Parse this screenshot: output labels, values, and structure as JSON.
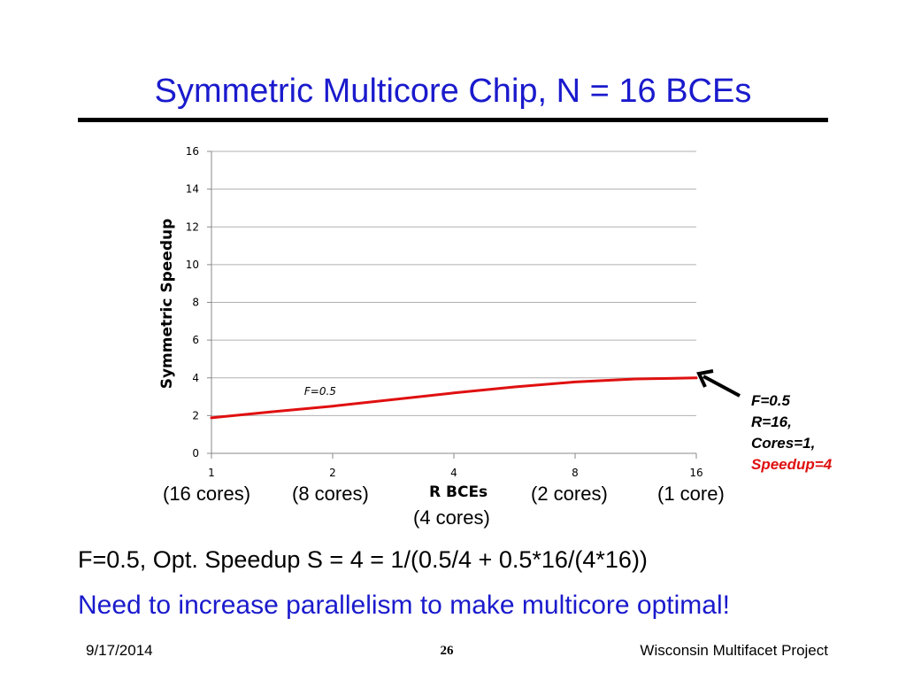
{
  "slide": {
    "title": "Symmetric Multicore Chip, N = 16 BCEs",
    "x_sublabels": [
      "(16 cores)",
      "(8 cores)",
      "(2 cores)",
      "(1 core)"
    ],
    "x_axis_title": "R BCEs",
    "x_axis_title_sub": "(4 cores)",
    "callout": {
      "line1": "F=0.5",
      "line2": "R=16,",
      "line3": "Cores=1,",
      "line4": "Speedup=4",
      "highlight_color": "#e01010"
    },
    "formula": "F=0.5, Opt. Speedup S = 4 = 1/(0.5/4 + 0.5*16/(4*16))",
    "note": "Need to increase parallelism to make multicore optimal!",
    "footer": {
      "date": "9/17/2014",
      "page": "26",
      "project": "Wisconsin Multifacet Project"
    },
    "colors": {
      "title": "#1a1acd",
      "series": "#e01010",
      "grid": "#b0b0b0"
    }
  },
  "chart_data": {
    "type": "line",
    "title": "",
    "xlabel": "R BCEs",
    "ylabel": "Symmetric Speedup",
    "x_scale": "log2",
    "x_ticks": [
      1,
      2,
      4,
      8,
      16
    ],
    "x_tick_labels": [
      "1",
      "2",
      "4",
      "8",
      "16"
    ],
    "ylim": [
      0,
      16
    ],
    "y_ticks": [
      0,
      2,
      4,
      6,
      8,
      10,
      12,
      14,
      16
    ],
    "grid": "horizontal",
    "series": [
      {
        "name": "F=0.5",
        "x": [
          1,
          1.41,
          2,
          2.83,
          4,
          5.66,
          8,
          11.31,
          16
        ],
        "values": [
          1.88,
          2.2,
          2.5,
          2.85,
          3.2,
          3.52,
          3.78,
          3.94,
          4.0
        ]
      }
    ]
  }
}
